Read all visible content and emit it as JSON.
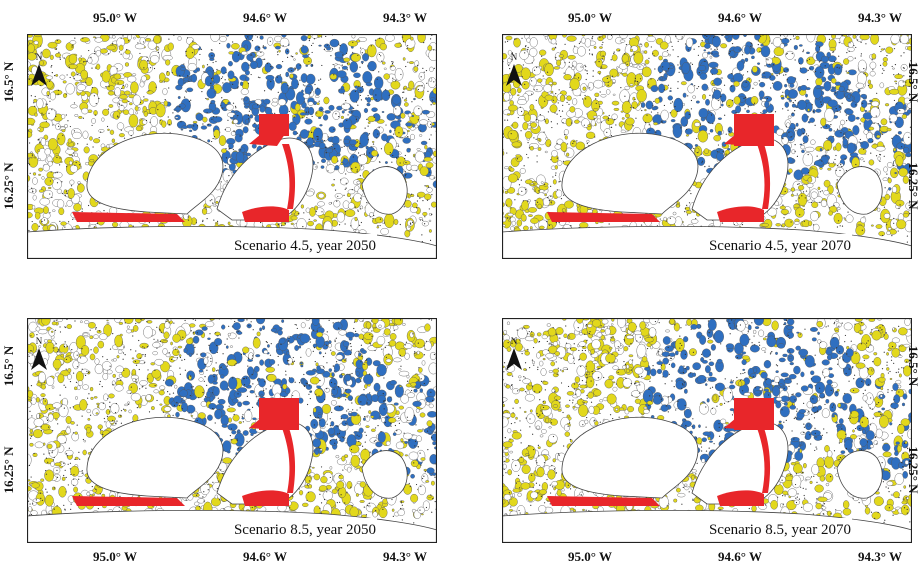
{
  "north": "N",
  "panels": [
    {
      "caption": "Scenario 4.5, year 2050",
      "x_labels": [
        "95.0° W",
        "94.6° W",
        "94.3° W"
      ],
      "y_labels": [
        "16.5° N",
        "16.25° N"
      ]
    },
    {
      "caption": "Scenario 4.5, year 2070",
      "x_labels": [
        "95.0° W",
        "94.6° W",
        "94.3° W"
      ],
      "y_labels": [
        "16.5° N",
        "16.25° N"
      ]
    },
    {
      "caption": "Scenario 8.5, year 2050",
      "x_labels": [
        "95.0° W",
        "94.6° W",
        "94.3° W"
      ],
      "y_labels": [
        "16.5° N",
        "16.25° N"
      ]
    },
    {
      "caption": "Scenario 8.5, year 2070",
      "x_labels": [
        "95.0° W",
        "94.6° W",
        "94.3° W"
      ],
      "y_labels": [
        "16.5° N",
        "16.25° N"
      ]
    }
  ]
}
